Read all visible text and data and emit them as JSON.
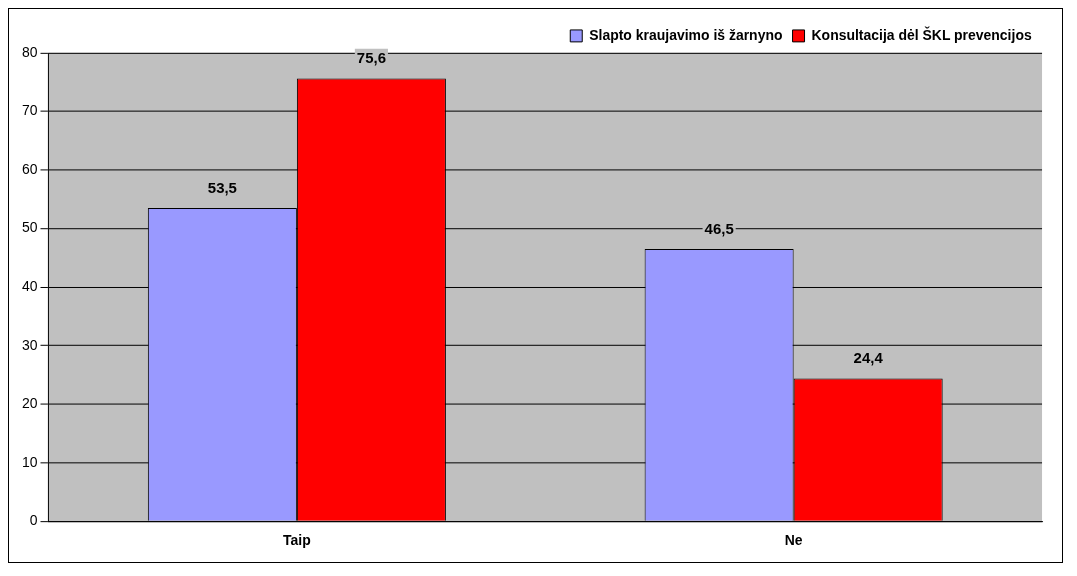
{
  "chart_data": {
    "type": "bar",
    "categories": [
      "Taip",
      "Ne"
    ],
    "series": [
      {
        "name": "Slapto kraujavimo iš žarnyno",
        "color": "#9999ff",
        "values": [
          53.5,
          46.5
        ],
        "value_labels": [
          "53,5",
          "46,5"
        ]
      },
      {
        "name": "Konsultacija dėl ŠKL prevencijos",
        "color": "#ff0000",
        "values": [
          75.6,
          24.4
        ],
        "value_labels": [
          "75,6",
          "24,4"
        ]
      }
    ],
    "ylim": [
      0,
      80
    ],
    "yticks": [
      0,
      10,
      20,
      30,
      40,
      50,
      60,
      70,
      80
    ],
    "grid": "y",
    "legend": "top right"
  }
}
